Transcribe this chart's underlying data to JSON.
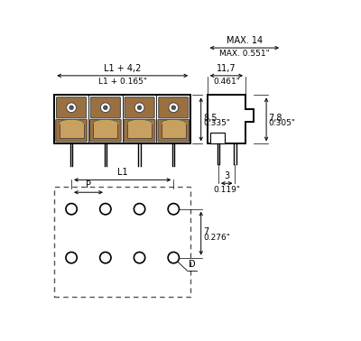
{
  "bg_color": "#ffffff",
  "line_color": "#000000",
  "figsize": [
    4.0,
    3.78
  ],
  "dpi": 100,
  "annotations": {
    "max14": "MAX. 14",
    "max0551": "MAX. 0.551\"",
    "l1_42": "L1 + 4,2",
    "l1_0165": "L1 + 0.165\"",
    "dim_117": "11,7",
    "dim_0461": "0.461\"",
    "dim_85": "8,5",
    "dim_0335": "0.335\"",
    "dim_78": "7,8",
    "dim_0305": "0.305\"",
    "dim_l1": "L1",
    "dim_p": "P",
    "dim_7": "7",
    "dim_0276": "0.276\"",
    "dim_3": "3",
    "dim_0119": "0.119\"",
    "dim_d": "D"
  }
}
